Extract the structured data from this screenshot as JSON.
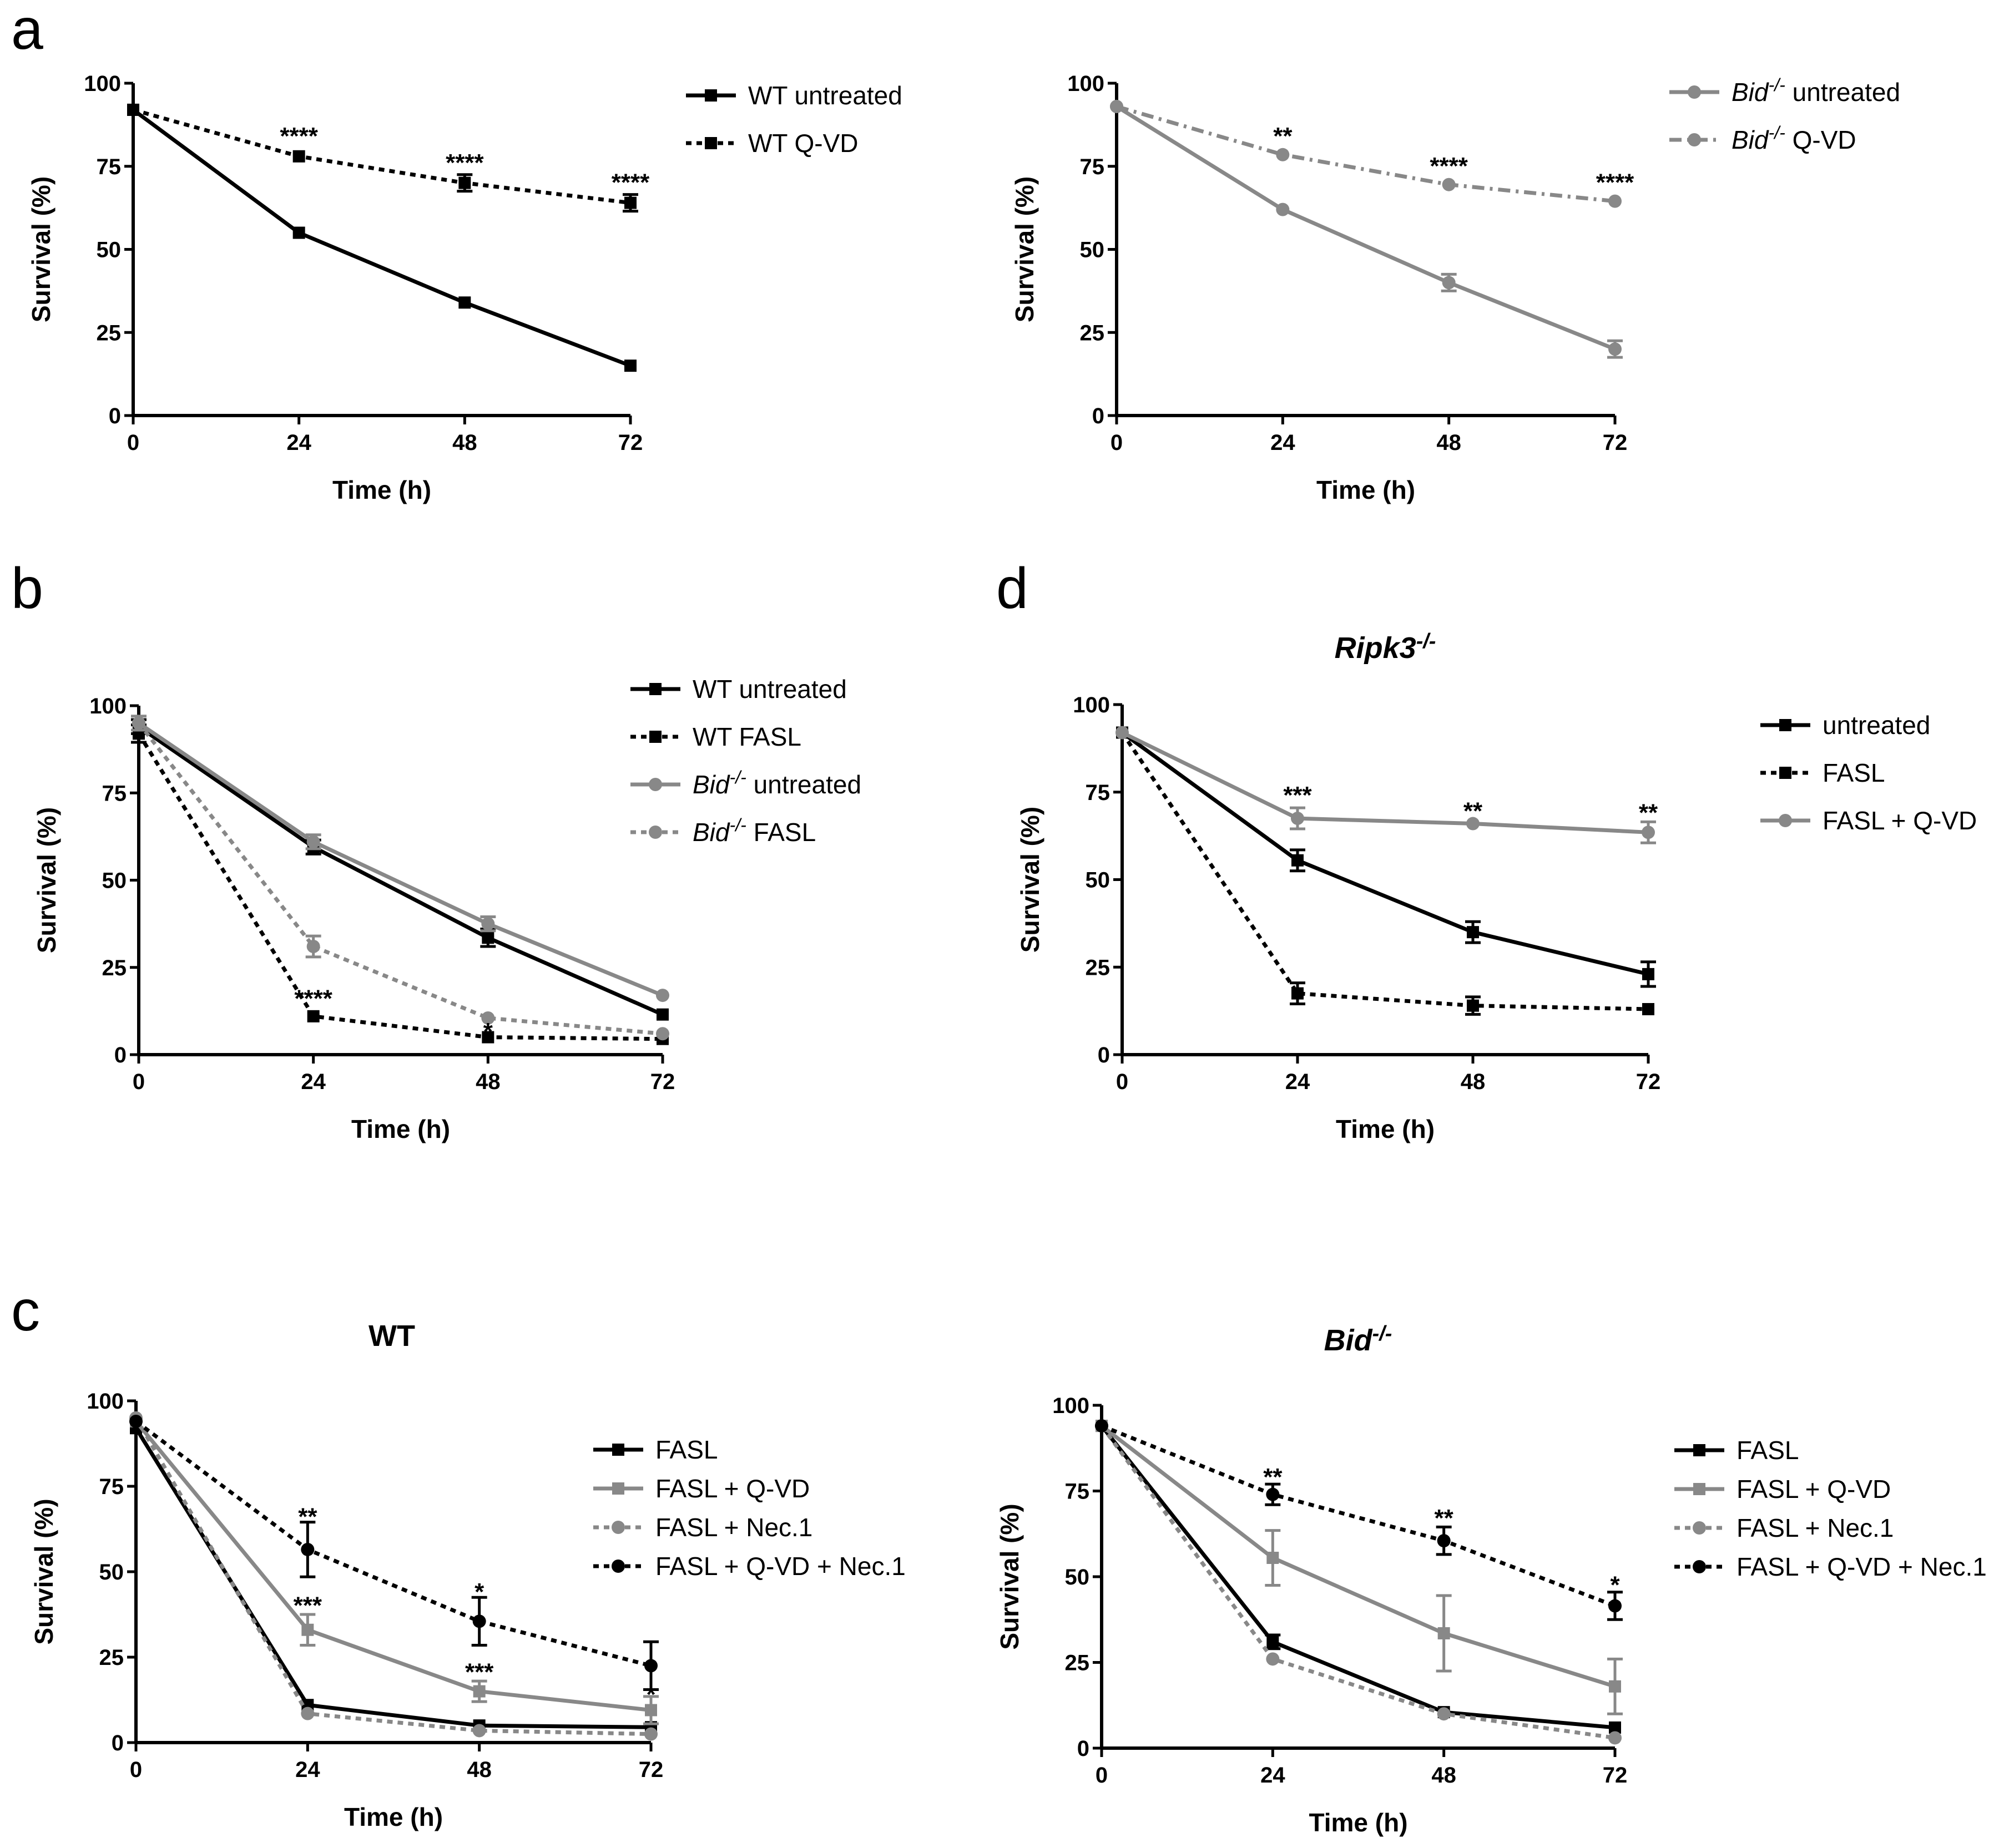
{
  "panel_letters": {
    "a": "a",
    "b": "b",
    "c": "c",
    "d": "d"
  },
  "chart_data": [
    {
      "id": "a1",
      "type": "line",
      "xlabel": "Time (h)",
      "ylabel": "Survival (%)",
      "x": [
        0,
        24,
        48,
        72
      ],
      "xlim": [
        0,
        72
      ],
      "ylim": [
        0,
        100
      ],
      "xticks": [
        0,
        24,
        48,
        72
      ],
      "yticks": [
        0,
        25,
        50,
        75,
        100
      ],
      "series": [
        {
          "name": "WT untreated",
          "label_main": "WT untreated",
          "label_sup": "",
          "label_suffix": "",
          "color": "#000000",
          "dash": "solid",
          "marker": "square",
          "values": [
            92,
            55,
            34,
            15
          ],
          "errors": [
            1,
            1,
            1,
            1
          ]
        },
        {
          "name": "WT Q-VD",
          "label_main": "WT Q-VD",
          "label_sup": "",
          "label_suffix": "",
          "color": "#000000",
          "dash": "dotted",
          "marker": "square",
          "values": [
            92,
            78,
            70,
            64
          ],
          "errors": [
            1,
            1,
            2.5,
            2.5
          ]
        }
      ],
      "annotations": [
        {
          "x": 24,
          "y": 84,
          "text": "****"
        },
        {
          "x": 48,
          "y": 76,
          "text": "****"
        },
        {
          "x": 72,
          "y": 70,
          "text": "****"
        }
      ]
    },
    {
      "id": "a2",
      "type": "line",
      "xlabel": "Time (h)",
      "ylabel": "Survival (%)",
      "x": [
        0,
        24,
        48,
        72
      ],
      "xlim": [
        0,
        72
      ],
      "ylim": [
        0,
        100
      ],
      "xticks": [
        0,
        24,
        48,
        72
      ],
      "yticks": [
        0,
        25,
        50,
        75,
        100
      ],
      "series": [
        {
          "name": "Bid-/- untreated",
          "label_main": "Bid",
          "label_sup": "-/-",
          "label_suffix": " untreated",
          "color": "#888888",
          "dash": "solid",
          "marker": "circle",
          "values": [
            93,
            62,
            40,
            20
          ],
          "errors": [
            1,
            1,
            2.5,
            2.5
          ]
        },
        {
          "name": "Bid-/- Q-VD",
          "label_main": "Bid",
          "label_sup": "-/-",
          "label_suffix": " Q-VD",
          "color": "#888888",
          "dash": "dashdot",
          "marker": "circle",
          "values": [
            93,
            78.5,
            69.5,
            64.5
          ],
          "errors": [
            1,
            1,
            1,
            1
          ]
        }
      ],
      "annotations": [
        {
          "x": 24,
          "y": 84,
          "text": "**"
        },
        {
          "x": 48,
          "y": 75,
          "text": "****"
        },
        {
          "x": 72,
          "y": 70,
          "text": "****"
        }
      ]
    },
    {
      "id": "b",
      "type": "line",
      "xlabel": "Time (h)",
      "ylabel": "Survival (%)",
      "x": [
        0,
        24,
        48,
        72
      ],
      "xlim": [
        0,
        72
      ],
      "ylim": [
        0,
        100
      ],
      "xticks": [
        0,
        24,
        48,
        72
      ],
      "yticks": [
        0,
        25,
        50,
        75,
        100
      ],
      "series": [
        {
          "name": "WT untreated",
          "label_main": "WT untreated",
          "label_sup": "",
          "label_suffix": "",
          "color": "#000000",
          "dash": "solid",
          "marker": "square",
          "values": [
            94,
            59.5,
            33.5,
            11.5
          ],
          "errors": [
            2,
            2,
            2.5,
            1
          ]
        },
        {
          "name": "WT FASL",
          "label_main": "WT FASL",
          "label_sup": "",
          "label_suffix": "",
          "color": "#000000",
          "dash": "dotted",
          "marker": "square",
          "values": [
            92,
            11,
            5,
            4.5
          ],
          "errors": [
            2.5,
            1,
            1,
            1
          ]
        },
        {
          "name": "Bid-/- untreated",
          "label_main": "Bid",
          "label_sup": "-/-",
          "label_suffix": " untreated",
          "color": "#888888",
          "dash": "solid",
          "marker": "circle",
          "values": [
            95,
            61,
            37.5,
            17
          ],
          "errors": [
            2,
            2,
            2,
            1
          ]
        },
        {
          "name": "Bid-/- FASL",
          "label_main": "Bid",
          "label_sup": "-/-",
          "label_suffix": " FASL",
          "color": "#888888",
          "dash": "dotted",
          "marker": "circle",
          "values": [
            95,
            31,
            10.5,
            6
          ],
          "errors": [
            2,
            3,
            1,
            1
          ]
        }
      ],
      "annotations": [
        {
          "x": 24,
          "y": 16,
          "text": "****"
        },
        {
          "x": 48,
          "y": 6.5,
          "text": "*"
        }
      ]
    },
    {
      "id": "d",
      "type": "line",
      "title_main": "Ripk3",
      "title_sup": "-/-",
      "xlabel": "Time (h)",
      "ylabel": "Survival (%)",
      "x": [
        0,
        24,
        48,
        72
      ],
      "xlim": [
        0,
        72
      ],
      "ylim": [
        0,
        100
      ],
      "xticks": [
        0,
        24,
        48,
        72
      ],
      "yticks": [
        0,
        25,
        50,
        75,
        100
      ],
      "series": [
        {
          "name": "untreated",
          "label_main": "untreated",
          "label_sup": "",
          "label_suffix": "",
          "color": "#000000",
          "dash": "solid",
          "marker": "square",
          "values": [
            92,
            55.5,
            35,
            23
          ],
          "errors": [
            1,
            3,
            3,
            3.5
          ]
        },
        {
          "name": "FASL",
          "label_main": "FASL",
          "label_sup": "",
          "label_suffix": "",
          "color": "#000000",
          "dash": "dotted",
          "marker": "square",
          "values": [
            92,
            17.5,
            14,
            13
          ],
          "errors": [
            1,
            3,
            2.5,
            1
          ]
        },
        {
          "name": "FASL + Q-VD",
          "label_main": "FASL + Q-VD",
          "label_sup": "",
          "label_suffix": "",
          "color": "#888888",
          "dash": "solid",
          "marker": "circle",
          "values": [
            92,
            67.5,
            66,
            63.5
          ],
          "errors": [
            1,
            3,
            1,
            3
          ]
        }
      ],
      "annotations": [
        {
          "x": 24,
          "y": 74,
          "text": "***"
        },
        {
          "x": 48,
          "y": 69.5,
          "text": "**"
        },
        {
          "x": 72,
          "y": 69,
          "text": "**"
        }
      ]
    },
    {
      "id": "c1",
      "type": "line",
      "title_main": "WT",
      "title_sup": "",
      "xlabel": "Time (h)",
      "ylabel": "Survival (%)",
      "x": [
        0,
        24,
        48,
        72
      ],
      "xlim": [
        0,
        72
      ],
      "ylim": [
        0,
        100
      ],
      "xticks": [
        0,
        24,
        48,
        72
      ],
      "yticks": [
        0,
        25,
        50,
        75,
        100
      ],
      "series": [
        {
          "name": "FASL",
          "label_main": "FASL",
          "label_sup": "",
          "label_suffix": "",
          "color": "#000000",
          "dash": "solid",
          "marker": "square",
          "values": [
            92,
            11,
            5,
            4.5
          ],
          "errors": [
            1,
            1,
            1,
            1
          ]
        },
        {
          "name": "FASL + Q-VD",
          "label_main": "FASL + Q-VD",
          "label_sup": "",
          "label_suffix": "",
          "color": "#888888",
          "dash": "solid",
          "marker": "square",
          "values": [
            94,
            33,
            15,
            9.5
          ],
          "errors": [
            1,
            4.5,
            3,
            4
          ]
        },
        {
          "name": "FASL + Nec.1",
          "label_main": "FASL + Nec.1",
          "label_sup": "",
          "label_suffix": "",
          "color": "#888888",
          "dash": "dotted",
          "marker": "circle",
          "values": [
            95,
            8.5,
            3.5,
            2.5
          ],
          "errors": [
            1,
            1,
            1,
            1
          ]
        },
        {
          "name": "FASL + Q-VD + Nec.1",
          "label_main": "FASL + Q-VD + Nec.1",
          "label_sup": "",
          "label_suffix": "",
          "color": "#000000",
          "dash": "dotted",
          "marker": "circle",
          "values": [
            94,
            56.5,
            35.5,
            22.5
          ],
          "errors": [
            1,
            8,
            7,
            7
          ]
        }
      ],
      "annotations": [
        {
          "x": 24,
          "y": 66,
          "text": "**"
        },
        {
          "x": 24,
          "y": 40,
          "text": "***"
        },
        {
          "x": 48,
          "y": 44,
          "text": "*"
        },
        {
          "x": 48,
          "y": 20.5,
          "text": "***"
        },
        {
          "x": 72,
          "y": 14,
          "text": "*"
        }
      ]
    },
    {
      "id": "c2",
      "type": "line",
      "title_main": "Bid",
      "title_sup": "-/-",
      "xlabel": "Time (h)",
      "ylabel": "Survival (%)",
      "x": [
        0,
        24,
        48,
        72
      ],
      "xlim": [
        0,
        72
      ],
      "ylim": [
        0,
        100
      ],
      "xticks": [
        0,
        24,
        48,
        72
      ],
      "yticks": [
        0,
        25,
        50,
        75,
        100
      ],
      "series": [
        {
          "name": "FASL",
          "label_main": "FASL",
          "label_sup": "",
          "label_suffix": "",
          "color": "#000000",
          "dash": "solid",
          "marker": "square",
          "values": [
            94,
            31,
            10.5,
            6
          ],
          "errors": [
            1,
            2,
            1,
            1
          ]
        },
        {
          "name": "FASL + Q-VD",
          "label_main": "FASL + Q-VD",
          "label_sup": "",
          "label_suffix": "",
          "color": "#888888",
          "dash": "solid",
          "marker": "square",
          "values": [
            94,
            55.5,
            33.5,
            18
          ],
          "errors": [
            1,
            8,
            11,
            8
          ]
        },
        {
          "name": "FASL + Nec.1",
          "label_main": "FASL + Nec.1",
          "label_sup": "",
          "label_suffix": "",
          "color": "#888888",
          "dash": "dotted",
          "marker": "circle",
          "values": [
            94,
            26,
            10,
            3
          ],
          "errors": [
            1,
            1,
            1,
            1
          ]
        },
        {
          "name": "FASL + Q-VD + Nec.1",
          "label_main": "FASL + Q-VD + Nec.1",
          "label_sup": "",
          "label_suffix": "",
          "color": "#000000",
          "dash": "dotted",
          "marker": "circle",
          "values": [
            94,
            74,
            60.5,
            41.5
          ],
          "errors": [
            1,
            3,
            4,
            4
          ]
        }
      ],
      "annotations": [
        {
          "x": 24,
          "y": 79,
          "text": "**"
        },
        {
          "x": 48,
          "y": 67,
          "text": "**"
        },
        {
          "x": 72,
          "y": 47.5,
          "text": "*"
        }
      ]
    }
  ]
}
